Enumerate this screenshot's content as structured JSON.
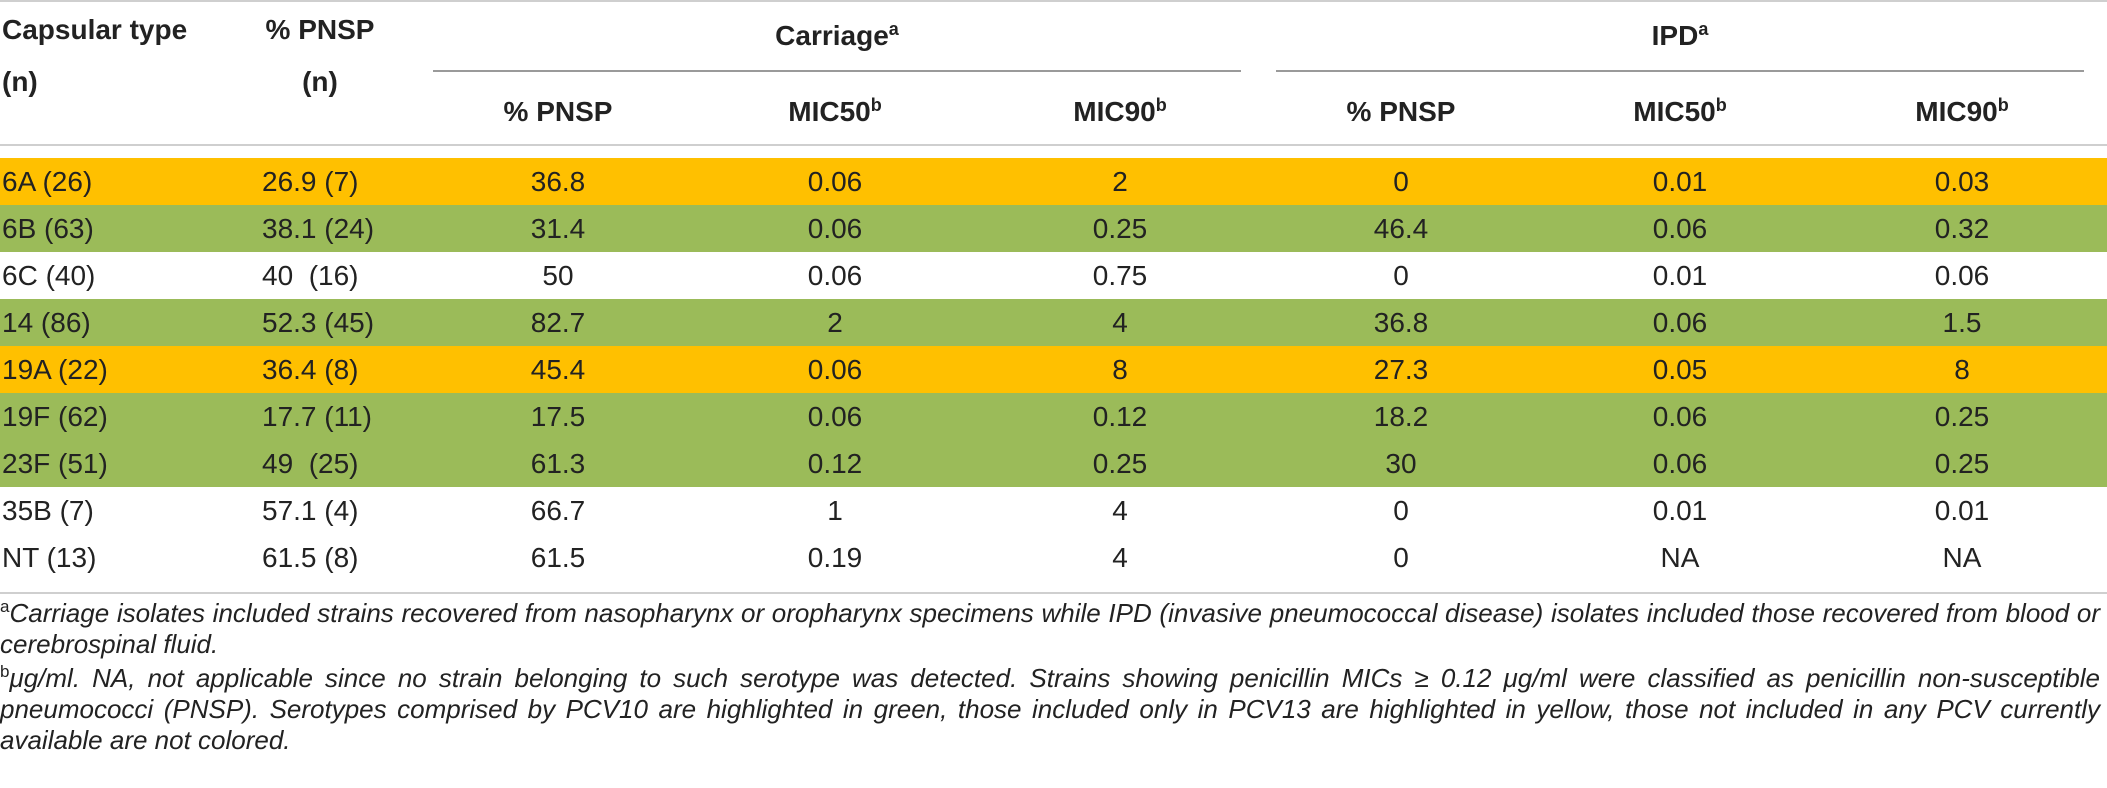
{
  "colors": {
    "pcv10": "#9bbb59",
    "pcv13": "#ffc000",
    "none": "#ffffff",
    "rule": "#cfcfcf"
  },
  "header": {
    "capsular_type": "Capsular type",
    "capsular_type_n": "(n)",
    "pnsp": "% PNSP",
    "pnsp_n": "(n)",
    "carriage": "Carriage",
    "carriage_sup": "a",
    "ipd": "IPD",
    "ipd_sup": "a",
    "sub": {
      "pnsp": "% PNSP",
      "mic50": "MIC50",
      "mic50_sup": "b",
      "mic90": "MIC90",
      "mic90_sup": "b"
    }
  },
  "rows": [
    {
      "type": "6A (26)",
      "pnsp": "26.9 (7)",
      "c_pnsp": "36.8",
      "c_mic50": "0.06",
      "c_mic90": "2",
      "i_pnsp": "0",
      "i_mic50": "0.01",
      "i_mic90": "0.03",
      "highlight": "pcv13"
    },
    {
      "type": "6B (63)",
      "pnsp": "38.1 (24)",
      "c_pnsp": "31.4",
      "c_mic50": "0.06",
      "c_mic90": "0.25",
      "i_pnsp": "46.4",
      "i_mic50": "0.06",
      "i_mic90": "0.32",
      "highlight": "pcv10"
    },
    {
      "type": "6C (40)",
      "pnsp": "40  (16)",
      "c_pnsp": "50",
      "c_mic50": "0.06",
      "c_mic90": "0.75",
      "i_pnsp": "0",
      "i_mic50": "0.01",
      "i_mic90": "0.06",
      "highlight": "none"
    },
    {
      "type": "14 (86)",
      "pnsp": "52.3 (45)",
      "c_pnsp": "82.7",
      "c_mic50": "2",
      "c_mic90": "4",
      "i_pnsp": "36.8",
      "i_mic50": "0.06",
      "i_mic90": "1.5",
      "highlight": "pcv10"
    },
    {
      "type": "19A (22)",
      "pnsp": "36.4 (8)",
      "c_pnsp": "45.4",
      "c_mic50": "0.06",
      "c_mic90": "8",
      "i_pnsp": "27.3",
      "i_mic50": "0.05",
      "i_mic90": "8",
      "highlight": "pcv13"
    },
    {
      "type": "19F (62)",
      "pnsp": "17.7 (11)",
      "c_pnsp": "17.5",
      "c_mic50": "0.06",
      "c_mic90": "0.12",
      "i_pnsp": "18.2",
      "i_mic50": "0.06",
      "i_mic90": "0.25",
      "highlight": "pcv10"
    },
    {
      "type": "23F (51)",
      "pnsp": "49  (25)",
      "c_pnsp": "61.3",
      "c_mic50": "0.12",
      "c_mic90": "0.25",
      "i_pnsp": "30",
      "i_mic50": "0.06",
      "i_mic90": "0.25",
      "highlight": "pcv10"
    },
    {
      "type": "35B (7)",
      "pnsp": "57.1 (4)",
      "c_pnsp": "66.7",
      "c_mic50": "1",
      "c_mic90": "4",
      "i_pnsp": "0",
      "i_mic50": "0.01",
      "i_mic90": "0.01",
      "highlight": "none"
    },
    {
      "type": "NT (13)",
      "pnsp": "61.5 (8)",
      "c_pnsp": "61.5",
      "c_mic50": "0.19",
      "c_mic90": "4",
      "i_pnsp": "0",
      "i_mic50": "NA",
      "i_mic90": "NA",
      "highlight": "none"
    }
  ],
  "footnotes": {
    "a_marker": "a",
    "a_text": "Carriage isolates included strains recovered from nasopharynx or oropharynx specimens while IPD (invasive pneumococcal disease) isolates included those recovered from blood or cerebrospinal fluid.",
    "b_marker": "b",
    "b_text": "μg/ml. NA, not applicable since no strain belonging to such serotype was detected. Strains showing penicillin MICs ≥ 0.12 μg/ml were classified as penicillin non-susceptible pneumococci (PNSP). Serotypes comprised by PCV10 are highlighted in green, those included only in PCV13 are highlighted in yellow, those not included in any PCV currently available are not colored."
  }
}
